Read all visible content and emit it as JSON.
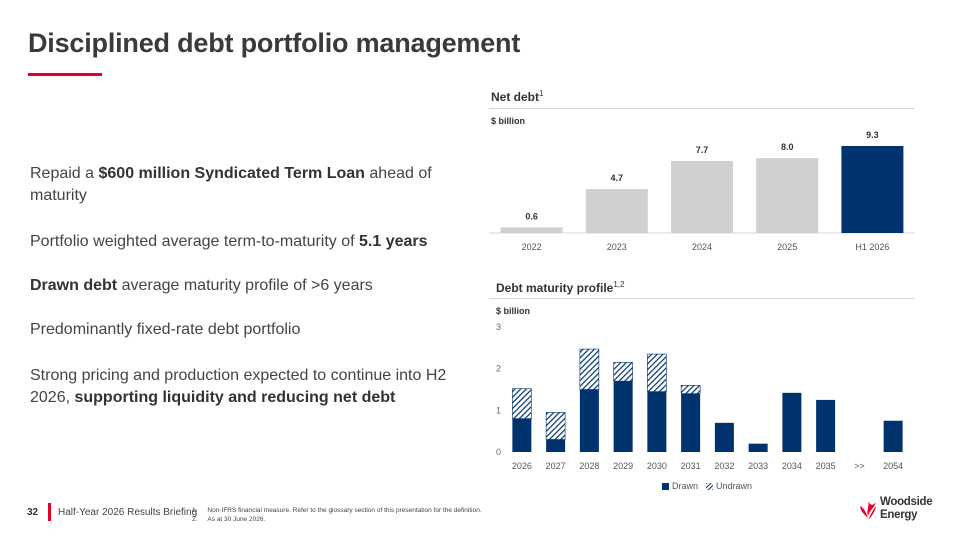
{
  "title": "Disciplined debt portfolio management",
  "bullets": {
    "b0": {
      "t1": "Repaid a ",
      "t2": "$600 million Syndicated Term Loan",
      "t3": " ahead of maturity"
    },
    "b1": {
      "t1": "Portfolio weighted average term-to-maturity of ",
      "t2": "5.1 years"
    },
    "b2": {
      "t1": "Drawn debt",
      "t2": " average maturity profile of >6 years"
    },
    "b3": {
      "t1": "Predominantly fixed-rate debt portfolio"
    },
    "b4": {
      "t1": "Strong pricing and production expected to continue into H2 2026, ",
      "t2": "supporting liquidity and reducing net debt"
    }
  },
  "net_debt": {
    "title": "Net debt",
    "sup": "1",
    "unit": "$ billion"
  },
  "maturity": {
    "title": "Debt maturity profile",
    "sup": "1,2",
    "unit": "$ billion",
    "legend_drawn": "Drawn",
    "legend_undrawn": "Undrawn"
  },
  "colors": {
    "navy": "#00326e",
    "grey_bar": "#d0d0d0",
    "red": "#e4002b"
  },
  "chart_data": [
    {
      "type": "bar",
      "title": "Net debt",
      "ylabel": "$ billion",
      "categories": [
        "2022",
        "2023",
        "2024",
        "2025",
        "H1 2026"
      ],
      "values": [
        0.6,
        4.7,
        7.7,
        8.0,
        9.3
      ],
      "data_labels": [
        "0.6",
        "4.7",
        "7.7",
        "8.0",
        "9.3"
      ],
      "ylim": [
        0,
        9.3
      ],
      "highlight": "H1 2026"
    },
    {
      "type": "bar",
      "stacked": true,
      "title": "Debt maturity profile",
      "ylabel": "$ billion",
      "categories": [
        "2026",
        "2027",
        "2028",
        "2029",
        "2030",
        "2031",
        "2032",
        "2033",
        "2034",
        "2035",
        ">>",
        "2054"
      ],
      "yticks": [
        "0",
        "1",
        "2",
        "3"
      ],
      "ylim": [
        0,
        3
      ],
      "grid": false,
      "legend": "bottom",
      "series": [
        {
          "name": "Drawn",
          "values": [
            0.8,
            0.3,
            1.5,
            1.7,
            1.45,
            1.4,
            0.7,
            0.2,
            1.42,
            1.25,
            0,
            0.75
          ]
        },
        {
          "name": "Undrawn",
          "values": [
            0.72,
            0.65,
            0.97,
            0.45,
            0.9,
            0.2,
            0,
            0,
            0,
            0,
            0,
            0
          ]
        }
      ]
    }
  ],
  "footer": {
    "page": "32",
    "text": "Half-Year 2026 Results Briefing",
    "note1_num": "1.",
    "note1": "Non-IFRS financial measure. Refer to the glossary section of this presentation for the definition.",
    "note2_num": "2.",
    "note2": "As at 30 June 2026."
  },
  "logo": {
    "line1": "Woodside",
    "line2": "Energy"
  }
}
